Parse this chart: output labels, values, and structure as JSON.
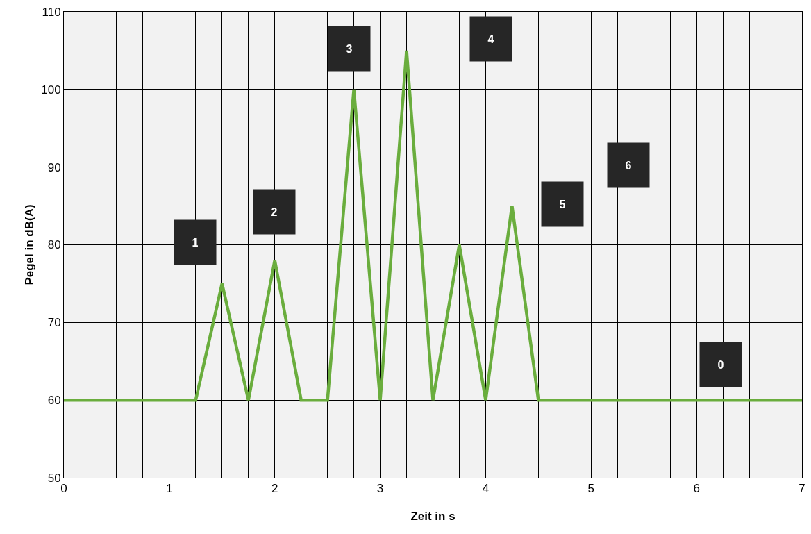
{
  "chart_data": {
    "type": "line",
    "xlabel": "Zeit in s",
    "ylabel": "Pegel in dB(A)",
    "x": [
      0,
      1.25,
      1.5,
      1.75,
      2,
      2.25,
      2.5,
      2.75,
      3,
      3.25,
      3.5,
      3.75,
      4,
      4.25,
      4.5,
      7
    ],
    "series": [
      {
        "color": "#6aad3d",
        "values": [
          60,
          60,
          75,
          60,
          78,
          60,
          60,
          100,
          60,
          105,
          60,
          80,
          60,
          85,
          60,
          60
        ]
      }
    ],
    "xlim": [
      0,
      7
    ],
    "ylim": [
      50,
      110
    ],
    "xticks": [
      0,
      {
        "value": 0.25,
        "label": null
      },
      {
        "value": 0.5,
        "label": null
      },
      {
        "value": 0.75,
        "label": null
      },
      1,
      {
        "value": 1.25,
        "label": null
      },
      {
        "value": 1.5,
        "label": null
      },
      {
        "value": 1.75,
        "label": null
      },
      2,
      {
        "value": 2.25,
        "label": null
      },
      {
        "value": 2.5,
        "label": null
      },
      {
        "value": 2.75,
        "label": null
      },
      3,
      {
        "value": 3.25,
        "label": null
      },
      {
        "value": 3.5,
        "label": null
      },
      {
        "value": 3.75,
        "label": null
      },
      4,
      {
        "value": 4.25,
        "label": null
      },
      {
        "value": 4.5,
        "label": null
      },
      {
        "value": 4.75,
        "label": null
      },
      5,
      {
        "value": 5.25,
        "label": null
      },
      {
        "value": 5.5,
        "label": null
      },
      {
        "value": 5.75,
        "label": null
      },
      6,
      {
        "value": 6.25,
        "label": null
      },
      {
        "value": 6.5,
        "label": null
      },
      {
        "value": 6.75,
        "label": null
      },
      7
    ],
    "yticks": [
      50,
      60,
      70,
      80,
      90,
      100,
      110
    ],
    "grid": true,
    "marker": "none",
    "line_style": "solid",
    "annotations": [
      "1",
      "2",
      "3",
      "4",
      "5",
      "6",
      "0"
    ]
  }
}
